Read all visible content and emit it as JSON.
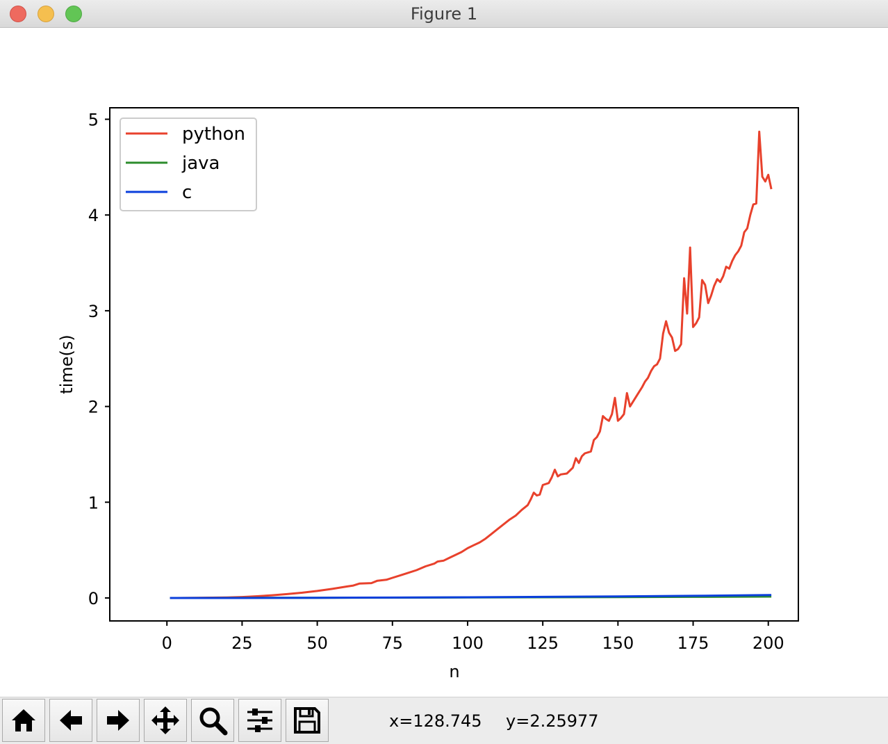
{
  "window": {
    "title": "Figure 1"
  },
  "toolbar": {
    "buttons": [
      {
        "name": "home-button",
        "icon": "home-icon"
      },
      {
        "name": "back-button",
        "icon": "arrow-left-icon"
      },
      {
        "name": "forward-button",
        "icon": "arrow-right-icon"
      },
      {
        "name": "pan-button",
        "icon": "move-icon"
      },
      {
        "name": "zoom-button",
        "icon": "search-icon"
      },
      {
        "name": "configure-subplots-button",
        "icon": "sliders-icon"
      },
      {
        "name": "save-button",
        "icon": "save-icon"
      }
    ],
    "coord_x": "x=128.745",
    "coord_y": "y=2.25977"
  },
  "chart_data": {
    "type": "line",
    "xlabel": "n",
    "ylabel": "time(s)",
    "xlim": [
      -19,
      210
    ],
    "ylim": [
      -0.24,
      5.12
    ],
    "xticks": [
      0,
      25,
      50,
      75,
      100,
      125,
      150,
      175,
      200
    ],
    "yticks": [
      0,
      1,
      2,
      3,
      4,
      5
    ],
    "legend_position": "top-left",
    "series": [
      {
        "name": "python",
        "color": "#e8412c",
        "points": [
          [
            1,
            0
          ],
          [
            10,
            0.001
          ],
          [
            20,
            0.005
          ],
          [
            25,
            0.01
          ],
          [
            30,
            0.018
          ],
          [
            35,
            0.028
          ],
          [
            40,
            0.04
          ],
          [
            45,
            0.055
          ],
          [
            50,
            0.073
          ],
          [
            55,
            0.095
          ],
          [
            60,
            0.12
          ],
          [
            62,
            0.13
          ],
          [
            64,
            0.15
          ],
          [
            68,
            0.155
          ],
          [
            70,
            0.18
          ],
          [
            73,
            0.19
          ],
          [
            75,
            0.21
          ],
          [
            78,
            0.24
          ],
          [
            80,
            0.26
          ],
          [
            83,
            0.29
          ],
          [
            86,
            0.33
          ],
          [
            89,
            0.36
          ],
          [
            90,
            0.38
          ],
          [
            92,
            0.39
          ],
          [
            94,
            0.42
          ],
          [
            96,
            0.45
          ],
          [
            98,
            0.48
          ],
          [
            100,
            0.52
          ],
          [
            102,
            0.55
          ],
          [
            104,
            0.58
          ],
          [
            106,
            0.62
          ],
          [
            108,
            0.67
          ],
          [
            110,
            0.72
          ],
          [
            112,
            0.77
          ],
          [
            114,
            0.82
          ],
          [
            116,
            0.86
          ],
          [
            118,
            0.92
          ],
          [
            120,
            0.97
          ],
          [
            121,
            1.03
          ],
          [
            122,
            1.1
          ],
          [
            123,
            1.07
          ],
          [
            124,
            1.08
          ],
          [
            125,
            1.18
          ],
          [
            127,
            1.2
          ],
          [
            128,
            1.26
          ],
          [
            129,
            1.34
          ],
          [
            130,
            1.27
          ],
          [
            131,
            1.29
          ],
          [
            133,
            1.3
          ],
          [
            135,
            1.36
          ],
          [
            136,
            1.46
          ],
          [
            137,
            1.41
          ],
          [
            138,
            1.48
          ],
          [
            139,
            1.51
          ],
          [
            141,
            1.53
          ],
          [
            142,
            1.65
          ],
          [
            143,
            1.68
          ],
          [
            144,
            1.74
          ],
          [
            145,
            1.9
          ],
          [
            146,
            1.87
          ],
          [
            147,
            1.85
          ],
          [
            148,
            1.92
          ],
          [
            149,
            2.09
          ],
          [
            150,
            1.85
          ],
          [
            151,
            1.88
          ],
          [
            152,
            1.92
          ],
          [
            153,
            2.14
          ],
          [
            154,
            2.0
          ],
          [
            155,
            2.05
          ],
          [
            156,
            2.1
          ],
          [
            157,
            2.15
          ],
          [
            158,
            2.2
          ],
          [
            159,
            2.26
          ],
          [
            160,
            2.3
          ],
          [
            161,
            2.37
          ],
          [
            162,
            2.42
          ],
          [
            163,
            2.44
          ],
          [
            164,
            2.5
          ],
          [
            165,
            2.76
          ],
          [
            166,
            2.89
          ],
          [
            167,
            2.77
          ],
          [
            168,
            2.72
          ],
          [
            169,
            2.58
          ],
          [
            170,
            2.6
          ],
          [
            171,
            2.65
          ],
          [
            172,
            3.34
          ],
          [
            173,
            2.97
          ],
          [
            174,
            3.66
          ],
          [
            175,
            2.83
          ],
          [
            176,
            2.87
          ],
          [
            177,
            2.93
          ],
          [
            178,
            3.32
          ],
          [
            179,
            3.27
          ],
          [
            180,
            3.08
          ],
          [
            181,
            3.16
          ],
          [
            182,
            3.26
          ],
          [
            183,
            3.33
          ],
          [
            184,
            3.3
          ],
          [
            185,
            3.36
          ],
          [
            186,
            3.46
          ],
          [
            187,
            3.44
          ],
          [
            188,
            3.52
          ],
          [
            189,
            3.58
          ],
          [
            190,
            3.62
          ],
          [
            191,
            3.68
          ],
          [
            192,
            3.82
          ],
          [
            193,
            3.86
          ],
          [
            194,
            4.0
          ],
          [
            195,
            4.11
          ],
          [
            196,
            4.12
          ],
          [
            197,
            4.87
          ],
          [
            198,
            4.4
          ],
          [
            199,
            4.35
          ],
          [
            200,
            4.42
          ],
          [
            201,
            4.27
          ]
        ]
      },
      {
        "name": "java",
        "color": "#2c8c2c",
        "points": [
          [
            1,
            0
          ],
          [
            50,
            0.002
          ],
          [
            100,
            0.005
          ],
          [
            150,
            0.009
          ],
          [
            175,
            0.011
          ],
          [
            200,
            0.014
          ],
          [
            201,
            0.014
          ]
        ]
      },
      {
        "name": "c",
        "color": "#0a3fdc",
        "points": [
          [
            1,
            0
          ],
          [
            25,
            0
          ],
          [
            50,
            0.002
          ],
          [
            75,
            0.004
          ],
          [
            100,
            0.007
          ],
          [
            125,
            0.011
          ],
          [
            150,
            0.016
          ],
          [
            175,
            0.022
          ],
          [
            195,
            0.029
          ],
          [
            201,
            0.031
          ]
        ]
      }
    ]
  }
}
